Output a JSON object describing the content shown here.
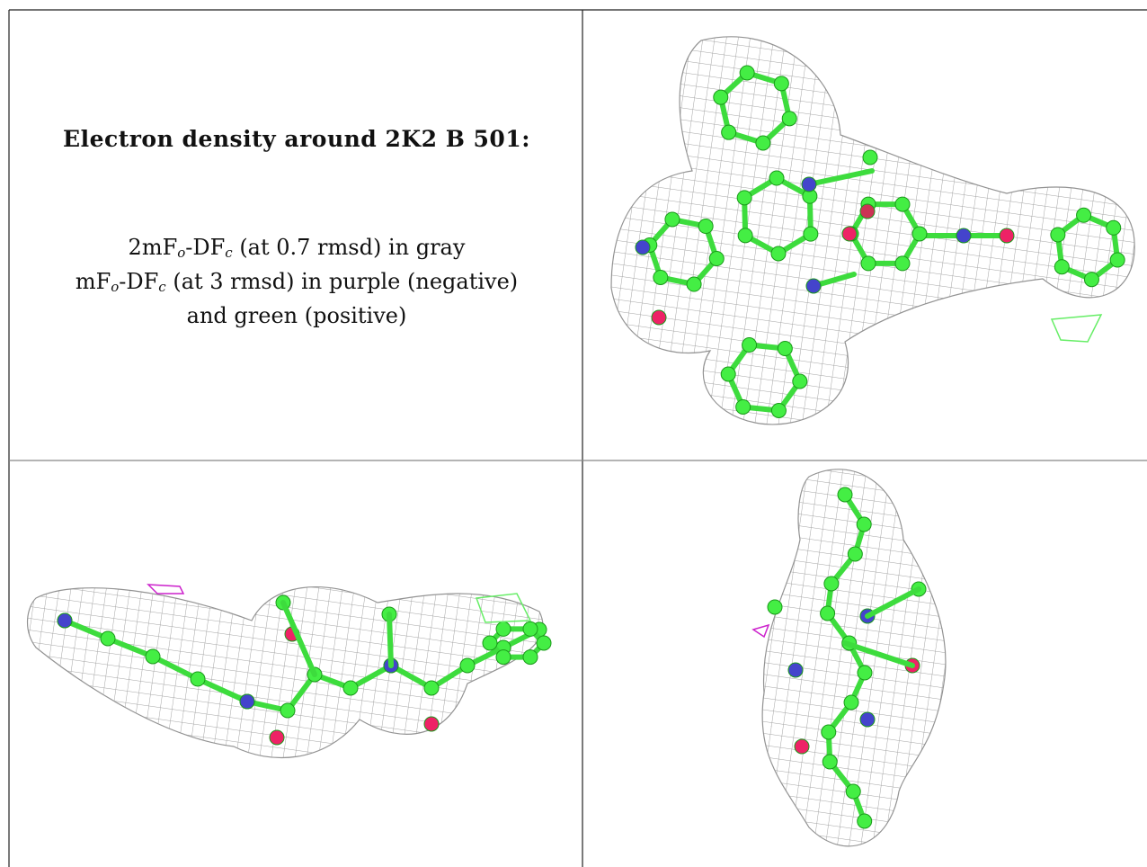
{
  "caption": {
    "title": "Electron density around 2K2 B 501:",
    "lines": [
      [
        "2mF",
        "o",
        "-DF",
        "c",
        " (at 0.7 rmsd) in gray"
      ],
      [
        "mF",
        "o",
        "-DF",
        "c",
        " (at 3 rmsd) in purple (negative)"
      ],
      [
        "and green (positive)"
      ]
    ]
  }
}
